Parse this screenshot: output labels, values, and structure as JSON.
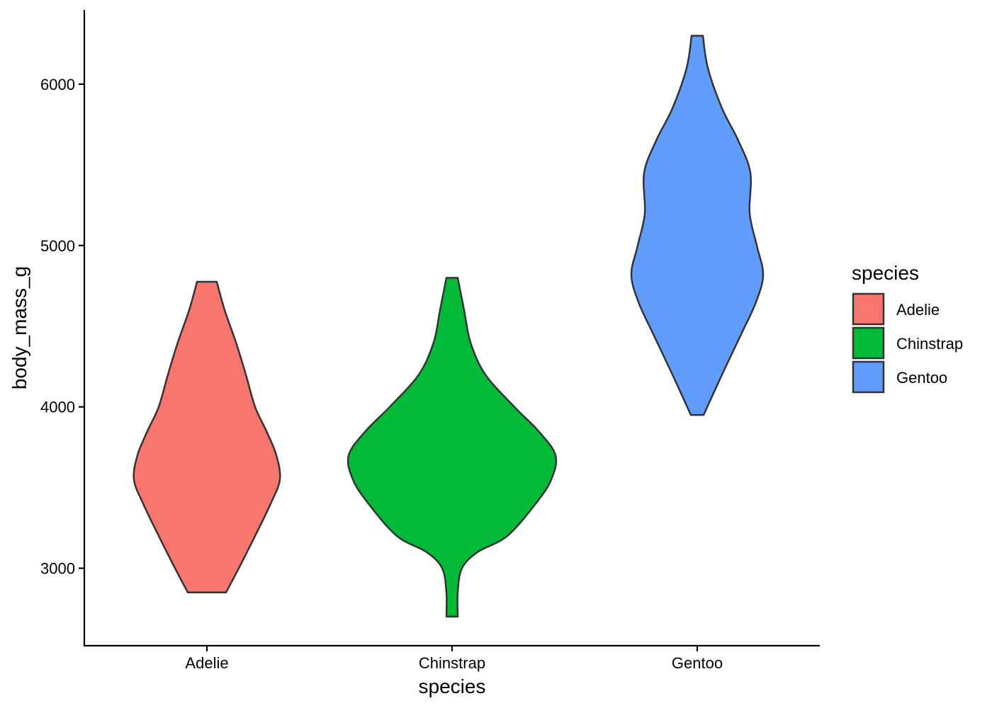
{
  "chart_data": {
    "type": "violin",
    "xlabel": "species",
    "ylabel": "body_mass_g",
    "ylim": [
      2520,
      6460
    ],
    "yticks": [
      3000,
      4000,
      5000,
      6000
    ],
    "categories": [
      "Adelie",
      "Chinstrap",
      "Gentoo"
    ],
    "legend": {
      "title": "species",
      "position": "right"
    },
    "grid": false,
    "series": [
      {
        "name": "Adelie",
        "color": "#F8766D",
        "profile": [
          {
            "y": 2850,
            "hw": 27
          },
          {
            "y": 3000,
            "hw": 45
          },
          {
            "y": 3200,
            "hw": 68
          },
          {
            "y": 3400,
            "hw": 90
          },
          {
            "y": 3550,
            "hw": 103
          },
          {
            "y": 3700,
            "hw": 98
          },
          {
            "y": 3850,
            "hw": 84
          },
          {
            "y": 4000,
            "hw": 68
          },
          {
            "y": 4200,
            "hw": 55
          },
          {
            "y": 4400,
            "hw": 41
          },
          {
            "y": 4600,
            "hw": 25
          },
          {
            "y": 4775,
            "hw": 14
          }
        ]
      },
      {
        "name": "Chinstrap",
        "color": "#00BA38",
        "profile": [
          {
            "y": 2700,
            "hw": 8
          },
          {
            "y": 2850,
            "hw": 8
          },
          {
            "y": 3000,
            "hw": 14
          },
          {
            "y": 3100,
            "hw": 36
          },
          {
            "y": 3200,
            "hw": 78
          },
          {
            "y": 3400,
            "hw": 118
          },
          {
            "y": 3550,
            "hw": 140
          },
          {
            "y": 3700,
            "hw": 146
          },
          {
            "y": 3850,
            "hw": 122
          },
          {
            "y": 4000,
            "hw": 88
          },
          {
            "y": 4200,
            "hw": 47
          },
          {
            "y": 4400,
            "hw": 26
          },
          {
            "y": 4600,
            "hw": 17
          },
          {
            "y": 4800,
            "hw": 8
          }
        ]
      },
      {
        "name": "Gentoo",
        "color": "#619CFF",
        "profile": [
          {
            "y": 3950,
            "hw": 9
          },
          {
            "y": 4200,
            "hw": 35
          },
          {
            "y": 4450,
            "hw": 62
          },
          {
            "y": 4650,
            "hw": 83
          },
          {
            "y": 4820,
            "hw": 93
          },
          {
            "y": 5000,
            "hw": 84
          },
          {
            "y": 5200,
            "hw": 74
          },
          {
            "y": 5450,
            "hw": 75
          },
          {
            "y": 5650,
            "hw": 58
          },
          {
            "y": 5850,
            "hw": 35
          },
          {
            "y": 6100,
            "hw": 15
          },
          {
            "y": 6300,
            "hw": 8
          }
        ]
      }
    ]
  }
}
